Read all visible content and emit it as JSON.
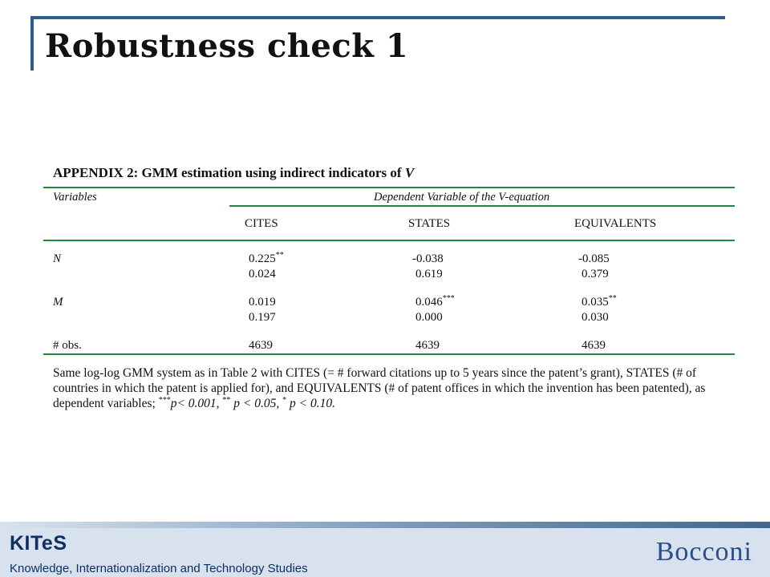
{
  "slide": {
    "title": "Robustness check 1"
  },
  "appendix": {
    "heading_prefix": "APPENDIX 2: GMM estimation using indirect indicators of ",
    "heading_var": "V",
    "variables_header": "Variables",
    "dependent_header": "Dependent Variable of the V-equation",
    "columns": [
      "CITES",
      "STATES",
      "EQUIVALENTS"
    ],
    "rows": [
      {
        "label": "N",
        "coef": [
          "0.225",
          "-0.038",
          "-0.085"
        ],
        "stars": [
          "**",
          "",
          ""
        ],
        "pvalue": [
          "0.024",
          "0.619",
          "0.379"
        ]
      },
      {
        "label": "M",
        "coef": [
          "0.019",
          "0.046",
          "0.035"
        ],
        "stars": [
          "",
          "***",
          "**"
        ],
        "pvalue": [
          "0.197",
          "0.000",
          "0.030"
        ]
      }
    ],
    "obs_label": "# obs.",
    "obs": [
      "4639",
      "4639",
      "4639"
    ],
    "note": {
      "main": "Same log-log GMM system as in Table 2 with CITES (= # forward citations up to 5 years since the patent’s grant), STATES (# of countries in which the patent is applied for), and EQUIVALENTS (# of patent offices in which the invention has been patented), as dependent variables; ",
      "star3": "***",
      "p3": "p< 0.001, ",
      "star2": "**",
      "p2": " p < 0.05, ",
      "star1": "*",
      "p1": " p < 0.10."
    }
  },
  "footer": {
    "logo": "KITeS",
    "tagline": "Knowledge, Internationalization and Technology Studies",
    "university": "Bocconi"
  },
  "colors": {
    "title_frame": "#2e5d94",
    "table_rules": "#1f8a3c",
    "footer_band": "#d8e2ef",
    "footer_text": "#0d2f61"
  }
}
